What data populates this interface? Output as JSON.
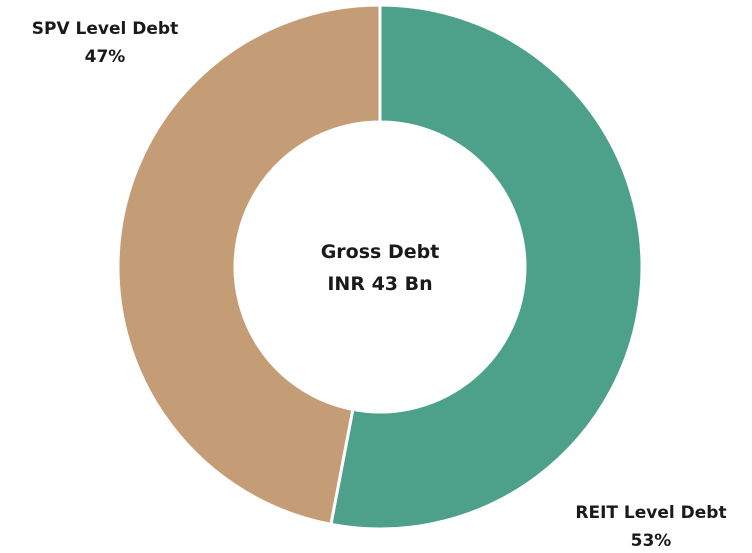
{
  "chart_data": {
    "type": "pie",
    "donut": true,
    "center_label": [
      "Gross Debt",
      "INR 43 Bn"
    ],
    "slices": [
      {
        "label": "REIT Level Debt",
        "value": 53,
        "value_label": "53%",
        "color": "#4da18a"
      },
      {
        "label": "SPV Level Debt",
        "value": 47,
        "value_label": "47%",
        "color": "#c49d76"
      }
    ],
    "legend": "none"
  }
}
